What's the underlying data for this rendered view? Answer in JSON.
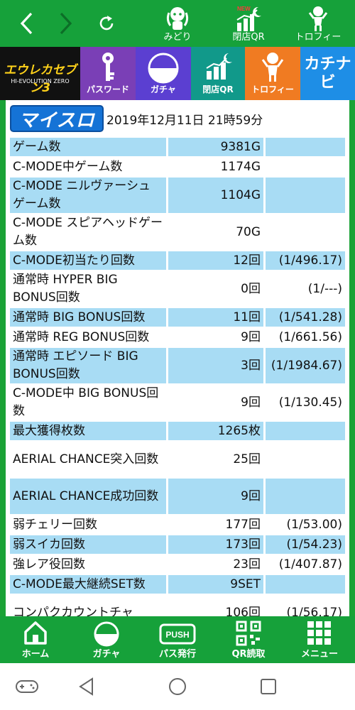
{
  "top_nav": {
    "items": [
      {
        "label": "みどり",
        "icon": "character-icon"
      },
      {
        "label": "閉店QR",
        "icon": "chart-moon-icon",
        "badge": "NEW"
      },
      {
        "label": "トロフィー",
        "icon": "trophy-person-icon"
      }
    ]
  },
  "banner": {
    "game_logo": "エウレカセブン3",
    "game_logo_sub": "HI-EVOLUTION ZERO",
    "items": [
      {
        "label": "パスワード",
        "color": "#7a3fb6"
      },
      {
        "label": "ガチャ",
        "color": "#5b3fd1"
      },
      {
        "label": "閉店QR",
        "color": "#11998a"
      },
      {
        "label": "トロフィー",
        "color": "#f07b22"
      }
    ],
    "right_logo": "カチナビ"
  },
  "header": {
    "logo": "マイスロ",
    "datetime": "2019年12月11日 21時59分"
  },
  "stats": [
    {
      "label": "ゲーム数",
      "value": "9381G",
      "rate": ""
    },
    {
      "label": "C-MODE中ゲーム数",
      "value": "1174G",
      "rate": ""
    },
    {
      "label": "C-MODE ニルヴァーシュ ゲーム数",
      "value": "1104G",
      "rate": ""
    },
    {
      "label": "C-MODE スピアヘッドゲーム数",
      "value": "70G",
      "rate": ""
    },
    {
      "label": "C-MODE初当たり回数",
      "value": "12回",
      "rate": "(1/496.17)"
    },
    {
      "label": "通常時 HYPER BIG BONUS回数",
      "value": "0回",
      "rate": "(1/---)"
    },
    {
      "label": "通常時 BIG BONUS回数",
      "value": "11回",
      "rate": "(1/541.28)"
    },
    {
      "label": "通常時 REG BONUS回数",
      "value": "9回",
      "rate": "(1/661.56)"
    },
    {
      "label": "通常時 エピソード BIG BONUS回数",
      "value": "3回",
      "rate": "(1/1984.67)"
    },
    {
      "label": "C-MODE中 BIG BONUS回数",
      "value": "9回",
      "rate": "(1/130.45)"
    },
    {
      "label": "最大獲得枚数",
      "value": "1265枚",
      "rate": ""
    },
    {
      "label": "AERIAL CHANCE突入回数",
      "value": "25回",
      "rate": ""
    },
    {
      "label": "AERIAL CHANCE成功回数",
      "value": "9回",
      "rate": ""
    },
    {
      "label": "弱チェリー回数",
      "value": "177回",
      "rate": "(1/53.00)"
    },
    {
      "label": "弱スイカ回数",
      "value": "173回",
      "rate": "(1/54.23)"
    },
    {
      "label": "強レア役回数",
      "value": "23回",
      "rate": "(1/407.87)"
    },
    {
      "label": "C-MODE最大継続SET数",
      "value": "9SET",
      "rate": ""
    },
    {
      "label": "コンパクカウントチャ",
      "value": "106回",
      "rate": "(1/56.17)"
    }
  ],
  "bottom_nav": [
    {
      "label": "ホーム",
      "icon": "home-icon"
    },
    {
      "label": "ガチャ",
      "icon": "gacha-icon"
    },
    {
      "label": "パス発行",
      "icon": "push-icon",
      "icon_text": "PUSH"
    },
    {
      "label": "QR読取",
      "icon": "qr-icon"
    },
    {
      "label": "メニュー",
      "icon": "grid-menu-icon"
    }
  ],
  "colors": {
    "green": "#16a13a",
    "row_blue": "#a8dcf4"
  }
}
